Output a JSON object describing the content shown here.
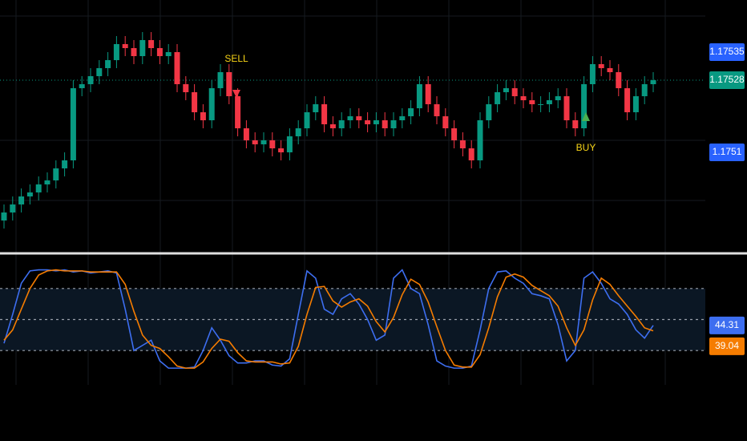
{
  "chart_data": [
    {
      "type": "candlestick",
      "up_color": "#089981",
      "down_color": "#f23645",
      "ylim": [
        1.17486,
        1.17548
      ],
      "open": [
        1.17493,
        1.17495,
        1.17497,
        1.17499,
        1.175,
        1.17502,
        1.17503,
        1.17506,
        1.17508,
        1.17526,
        1.17527,
        1.17529,
        1.17531,
        1.17533,
        1.17537,
        1.17536,
        1.17534,
        1.17538,
        1.17536,
        1.17534,
        1.17535,
        1.17527,
        1.17525,
        1.1752,
        1.17518,
        1.17526,
        1.1753,
        1.17524,
        1.17516,
        1.17513,
        1.17512,
        1.17513,
        1.17511,
        1.1751,
        1.17514,
        1.17516,
        1.1752,
        1.17522,
        1.17517,
        1.17516,
        1.17518,
        1.17519,
        1.17518,
        1.17517,
        1.17518,
        1.17516,
        1.17518,
        1.17519,
        1.17521,
        1.17527,
        1.17522,
        1.17519,
        1.17516,
        1.17513,
        1.17511,
        1.17508,
        1.17518,
        1.17522,
        1.17525,
        1.17526,
        1.17524,
        1.17523,
        1.17522,
        1.17522,
        1.17523,
        1.17524,
        1.17518,
        1.17516,
        1.17527,
        1.17532,
        1.17531,
        1.1753,
        1.17526,
        1.1752,
        1.17524,
        1.17527
      ],
      "high": [
        1.17497,
        1.17499,
        1.17501,
        1.17502,
        1.17504,
        1.17505,
        1.17508,
        1.1751,
        1.17528,
        1.17529,
        1.17531,
        1.17533,
        1.17535,
        1.17539,
        1.17539,
        1.17538,
        1.1754,
        1.1754,
        1.17538,
        1.17537,
        1.17537,
        1.17529,
        1.17527,
        1.17522,
        1.17528,
        1.17532,
        1.17532,
        1.17526,
        1.17518,
        1.17515,
        1.17515,
        1.17515,
        1.17513,
        1.17516,
        1.17518,
        1.17522,
        1.17524,
        1.17524,
        1.17519,
        1.1752,
        1.17521,
        1.17521,
        1.1752,
        1.1752,
        1.1752,
        1.1752,
        1.17521,
        1.17523,
        1.17529,
        1.17529,
        1.17524,
        1.17521,
        1.17518,
        1.17515,
        1.17513,
        1.1752,
        1.17524,
        1.17527,
        1.17528,
        1.17528,
        1.17526,
        1.17525,
        1.17524,
        1.17525,
        1.17526,
        1.17526,
        1.1752,
        1.17529,
        1.17534,
        1.17534,
        1.17533,
        1.17532,
        1.17528,
        1.17526,
        1.17529,
        1.1753
      ],
      "low": [
        1.17491,
        1.17493,
        1.17495,
        1.17497,
        1.17498,
        1.175,
        1.17501,
        1.17504,
        1.17506,
        1.17524,
        1.17525,
        1.17527,
        1.17529,
        1.17531,
        1.17534,
        1.17532,
        1.17532,
        1.17534,
        1.17532,
        1.17532,
        1.17525,
        1.17523,
        1.17518,
        1.17516,
        1.17516,
        1.17524,
        1.17522,
        1.17514,
        1.17511,
        1.1751,
        1.1751,
        1.17509,
        1.17508,
        1.17508,
        1.17512,
        1.17514,
        1.17518,
        1.17515,
        1.17514,
        1.17514,
        1.17516,
        1.17516,
        1.17515,
        1.17515,
        1.17514,
        1.17514,
        1.17516,
        1.17517,
        1.17519,
        1.1752,
        1.17517,
        1.17514,
        1.17511,
        1.17509,
        1.17506,
        1.17506,
        1.17516,
        1.1752,
        1.17523,
        1.17522,
        1.17521,
        1.1752,
        1.1752,
        1.1752,
        1.17521,
        1.17516,
        1.17514,
        1.17514,
        1.17525,
        1.17529,
        1.17528,
        1.17524,
        1.17518,
        1.17518,
        1.17522,
        1.17525
      ],
      "close": [
        1.17495,
        1.17497,
        1.17499,
        1.175,
        1.17502,
        1.17503,
        1.17506,
        1.17508,
        1.17526,
        1.17527,
        1.17529,
        1.17531,
        1.17533,
        1.17537,
        1.17536,
        1.17534,
        1.17538,
        1.17536,
        1.17534,
        1.17535,
        1.17527,
        1.17525,
        1.1752,
        1.17518,
        1.17526,
        1.1753,
        1.17524,
        1.17516,
        1.17513,
        1.17512,
        1.17513,
        1.17511,
        1.1751,
        1.17514,
        1.17516,
        1.1752,
        1.17522,
        1.17517,
        1.17516,
        1.17518,
        1.17519,
        1.17518,
        1.17517,
        1.17518,
        1.17516,
        1.17518,
        1.17519,
        1.17521,
        1.17527,
        1.17522,
        1.17519,
        1.17516,
        1.17513,
        1.17511,
        1.17508,
        1.17518,
        1.17522,
        1.17525,
        1.17526,
        1.17524,
        1.17523,
        1.17522,
        1.17522,
        1.17523,
        1.17524,
        1.17518,
        1.17516,
        1.17527,
        1.17532,
        1.17531,
        1.1753,
        1.17526,
        1.1752,
        1.17524,
        1.17527,
        1.17528
      ],
      "annotations": [
        {
          "text": "SELL",
          "color": "#f7d417"
        },
        {
          "text": "BUY",
          "color": "#f7d417"
        }
      ],
      "price_labels": [
        {
          "value": 1.17535,
          "color": "#2962ff"
        },
        {
          "value": 1.17528,
          "color": "#089981"
        },
        {
          "value": 1.1751,
          "color": "#2962ff"
        }
      ]
    },
    {
      "type": "line",
      "ylim": [
        0,
        100
      ],
      "yticks": [
        20,
        50,
        80
      ],
      "series": [
        {
          "color": "#3d6ef0",
          "values": [
            27,
            55,
            85,
            97,
            98,
            98,
            97,
            98,
            96,
            97,
            95,
            96,
            97,
            95,
            60,
            20,
            25,
            30,
            10,
            3,
            3,
            3,
            4,
            20,
            42,
            30,
            15,
            8,
            8,
            10,
            10,
            6,
            5,
            12,
            55,
            97,
            90,
            60,
            55,
            70,
            75,
            65,
            50,
            30,
            35,
            90,
            98,
            80,
            75,
            45,
            10,
            5,
            3,
            3,
            5,
            40,
            80,
            96,
            97,
            90,
            85,
            75,
            73,
            70,
            45,
            10,
            20,
            90,
            96,
            85,
            70,
            65,
            55,
            40,
            32,
            44.31
          ]
        },
        {
          "color": "#f57c00",
          "values": [
            30,
            40,
            60,
            80,
            93,
            97,
            98,
            97,
            97,
            97,
            96,
            96,
            96,
            96,
            84,
            58,
            35,
            25,
            22,
            14,
            5,
            3,
            3,
            9,
            22,
            31,
            29,
            18,
            10,
            9,
            9,
            9,
            7,
            8,
            24,
            55,
            81,
            82,
            68,
            62,
            67,
            70,
            63,
            48,
            38,
            52,
            74,
            89,
            84,
            67,
            43,
            20,
            6,
            4,
            4,
            16,
            42,
            72,
            91,
            94,
            91,
            83,
            78,
            73,
            63,
            42,
            25,
            40,
            69,
            90,
            84,
            73,
            63,
            53,
            42,
            39.04
          ]
        }
      ]
    }
  ]
}
